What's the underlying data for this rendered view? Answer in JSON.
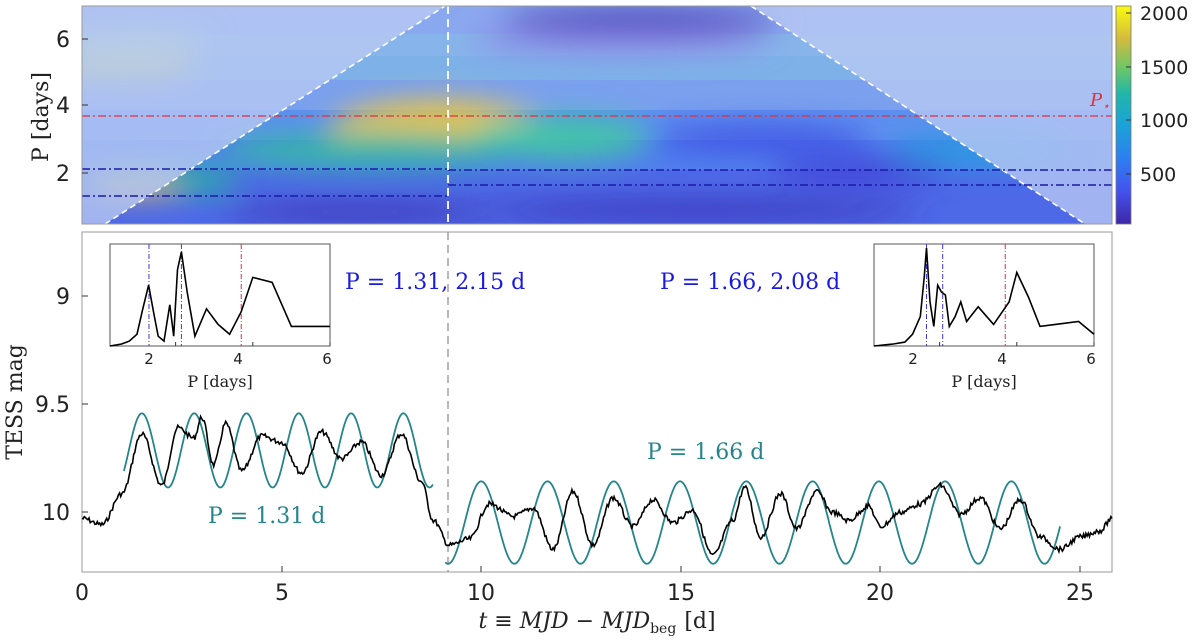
{
  "chart_data": [
    {
      "type": "heatmap",
      "panel": "wavelet power spectrum (top)",
      "ylabel": "P [days]",
      "yticks": [
        "2",
        "4",
        "6"
      ],
      "ylim": [
        0.5,
        7
      ],
      "xlim": [
        0,
        25.8
      ],
      "colorbar": {
        "ticks": [
          "500",
          "1000",
          "1500",
          "2000"
        ],
        "range": [
          0,
          2050
        ],
        "colormap": "parula"
      },
      "hotspots": [
        {
          "t": 10,
          "P": 3.0,
          "power": 1900
        },
        {
          "t": 2,
          "P": 1.35,
          "power": 1650
        },
        {
          "t": 0.5,
          "P": 5.4,
          "power": 1300
        },
        {
          "t": 13,
          "P": 2.4,
          "power": 1300
        },
        {
          "t": 22,
          "P": 1.7,
          "power": 1000
        }
      ],
      "cone_of_influence": [
        [
          0.8,
          0.5
        ],
        [
          11.2,
          7.0
        ],
        [
          20.7,
          7.0
        ],
        [
          25.0,
          0.5
        ]
      ],
      "reference_lines": {
        "p_star": {
          "value": 3.7,
          "label": "P",
          "label_sub": "⋆",
          "color": "#e0303a"
        },
        "left_periods": [
          1.31,
          2.15
        ],
        "right_periods": [
          1.66,
          2.08
        ],
        "split_t": 9.15
      }
    },
    {
      "type": "line",
      "panel": "TESS light curve (bottom)",
      "xlabel": "t ≡ MJD − MJD",
      "xlabel_sub": "beg",
      "xlabel_unit": "[d]",
      "ylabel": "TESS mag",
      "xticks": [
        "0",
        "5",
        "10",
        "15",
        "20",
        "25"
      ],
      "yticks": [
        "9",
        "9.5",
        "10"
      ],
      "xlim": [
        0,
        25.8
      ],
      "ylim_inverted": [
        10.25,
        8.6
      ],
      "series": [
        {
          "name": "",
          "color": "#000000",
          "points": [
            [
              0,
              9.99
            ],
            [
              0.5,
              10.02
            ],
            [
              1.0,
              9.87
            ],
            [
              1.5,
              9.58
            ],
            [
              2.0,
              9.83
            ],
            [
              2.4,
              9.55
            ],
            [
              2.8,
              9.6
            ],
            [
              3.0,
              9.5
            ],
            [
              3.3,
              9.73
            ],
            [
              3.6,
              9.53
            ],
            [
              4.0,
              9.76
            ],
            [
              4.5,
              9.59
            ],
            [
              5.0,
              9.62
            ],
            [
              5.5,
              9.77
            ],
            [
              6.0,
              9.57
            ],
            [
              6.5,
              9.7
            ],
            [
              7.0,
              9.62
            ],
            [
              7.5,
              9.78
            ],
            [
              8.0,
              9.58
            ],
            [
              8.5,
              9.81
            ],
            [
              8.8,
              10.0
            ],
            [
              9.2,
              10.12
            ],
            [
              9.7,
              10.09
            ],
            [
              10.2,
              9.92
            ],
            [
              10.8,
              9.98
            ],
            [
              11.3,
              9.94
            ],
            [
              11.8,
              10.14
            ],
            [
              12.3,
              9.86
            ],
            [
              12.8,
              10.12
            ],
            [
              13.3,
              9.89
            ],
            [
              13.8,
              10.03
            ],
            [
              14.3,
              9.9
            ],
            [
              14.8,
              10.01
            ],
            [
              15.3,
              9.95
            ],
            [
              15.8,
              10.17
            ],
            [
              16.3,
              10.0
            ],
            [
              16.6,
              9.84
            ],
            [
              17.0,
              10.08
            ],
            [
              17.5,
              9.87
            ],
            [
              17.9,
              10.04
            ],
            [
              18.4,
              9.86
            ],
            [
              18.8,
              9.96
            ],
            [
              19.2,
              10.0
            ],
            [
              19.7,
              9.93
            ],
            [
              20.0,
              10.03
            ],
            [
              20.5,
              9.96
            ],
            [
              21.0,
              9.92
            ],
            [
              21.5,
              9.83
            ],
            [
              22.0,
              9.97
            ],
            [
              22.5,
              9.89
            ],
            [
              23.0,
              10.04
            ],
            [
              23.5,
              9.9
            ],
            [
              24.0,
              10.08
            ],
            [
              24.5,
              10.14
            ],
            [
              25.0,
              10.08
            ],
            [
              25.5,
              10.05
            ],
            [
              25.8,
              9.99
            ]
          ]
        },
        {
          "name": "P = 1.31 d",
          "color": "#24858a",
          "period": 1.31,
          "t_range": [
            1.05,
            8.8
          ],
          "mean": 9.66,
          "amplitude": 0.18,
          "phase_peak_t": 1.5
        },
        {
          "name": "P = 1.66 d",
          "color": "#24858a",
          "period": 1.66,
          "t_range": [
            9.1,
            24.5
          ],
          "mean": 10.01,
          "amplitude": 0.2,
          "phase_peak_t": 10.0
        }
      ],
      "annotations": [
        {
          "text": "P = 1.31, 2.15 d",
          "color": "#1a1ae0"
        },
        {
          "text": "P = 1.66, 2.08 d",
          "color": "#1a1ae0"
        },
        {
          "text": "P = 1.31 d",
          "color": "#24858a"
        },
        {
          "text": "P = 1.66 d",
          "color": "#24858a"
        }
      ]
    },
    {
      "type": "line",
      "panel": "inset periodogram (left)",
      "xlabel": "P [days]",
      "xticks": [
        "2",
        "4",
        "6"
      ],
      "xlim": [
        0.3,
        6
      ],
      "markers": {
        "blue": [
          1.31,
          2.15
        ],
        "red": 3.7
      },
      "points": [
        [
          0.3,
          0.0
        ],
        [
          0.6,
          0.02
        ],
        [
          0.8,
          0.05
        ],
        [
          1.0,
          0.12
        ],
        [
          1.15,
          0.38
        ],
        [
          1.3,
          0.62
        ],
        [
          1.45,
          0.3
        ],
        [
          1.55,
          0.1
        ],
        [
          1.7,
          0.05
        ],
        [
          1.85,
          0.42
        ],
        [
          1.95,
          0.1
        ],
        [
          2.05,
          0.78
        ],
        [
          2.15,
          0.96
        ],
        [
          2.3,
          0.55
        ],
        [
          2.5,
          0.1
        ],
        [
          2.8,
          0.38
        ],
        [
          3.1,
          0.22
        ],
        [
          3.4,
          0.12
        ],
        [
          3.7,
          0.35
        ],
        [
          4.0,
          0.7
        ],
        [
          4.5,
          0.65
        ],
        [
          5.0,
          0.2
        ],
        [
          6.0,
          0.2
        ]
      ]
    },
    {
      "type": "line",
      "panel": "inset periodogram (right)",
      "xlabel": "P [days]",
      "xticks": [
        "2",
        "4",
        "6"
      ],
      "xlim": [
        0.3,
        6
      ],
      "markers": {
        "blue": [
          1.66,
          2.08
        ],
        "red": 3.7
      },
      "points": [
        [
          0.3,
          0.0
        ],
        [
          0.8,
          0.02
        ],
        [
          1.1,
          0.04
        ],
        [
          1.3,
          0.12
        ],
        [
          1.5,
          0.3
        ],
        [
          1.6,
          0.7
        ],
        [
          1.66,
          1.0
        ],
        [
          1.75,
          0.45
        ],
        [
          1.85,
          0.2
        ],
        [
          1.95,
          0.62
        ],
        [
          2.05,
          0.55
        ],
        [
          2.15,
          0.52
        ],
        [
          2.25,
          0.2
        ],
        [
          2.4,
          0.3
        ],
        [
          2.55,
          0.45
        ],
        [
          2.7,
          0.25
        ],
        [
          3.0,
          0.4
        ],
        [
          3.4,
          0.22
        ],
        [
          3.8,
          0.45
        ],
        [
          4.0,
          0.75
        ],
        [
          4.3,
          0.5
        ],
        [
          4.6,
          0.2
        ],
        [
          5.0,
          0.22
        ],
        [
          5.6,
          0.25
        ],
        [
          6.0,
          0.12
        ]
      ]
    }
  ]
}
